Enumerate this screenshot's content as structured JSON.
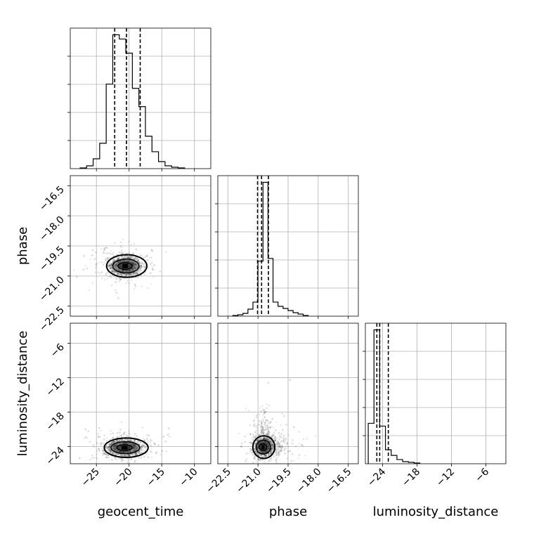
{
  "chart_data": {
    "type": "corner",
    "parameters": [
      "geocent_time",
      "phase",
      "luminosity_distance"
    ],
    "axis_labels": {
      "geocent_time": "geocent_time",
      "phase": "phase",
      "luminosity_distance": "luminosity_distance"
    },
    "ranges": {
      "geocent_time": [
        -29,
        -7.5
      ],
      "phase": [
        -23,
        -16
      ],
      "luminosity_distance": [
        -27,
        -2.5
      ]
    },
    "ticks": {
      "geocent_time": [
        -25,
        -20,
        -15,
        -10
      ],
      "phase": [
        -22.5,
        -21.0,
        -19.5,
        -18.0,
        -16.5
      ],
      "luminosity_distance": [
        -24,
        -18,
        -12,
        -6
      ]
    },
    "tick_labels": {
      "geocent_time": [
        "−25",
        "−20",
        "−15",
        "−10"
      ],
      "phase": [
        "−22.5",
        "−21.0",
        "−19.5",
        "−18.0",
        "−16.5"
      ],
      "luminosity_distance": [
        "−24",
        "−18",
        "−12",
        "−6"
      ]
    },
    "histograms": {
      "geocent_time": {
        "bin_start": -27.5,
        "bin_width": 1.0,
        "counts": [
          0.005,
          0.02,
          0.07,
          0.18,
          0.6,
          0.95,
          0.92,
          0.82,
          0.57,
          0.44,
          0.23,
          0.12,
          0.05,
          0.02,
          0.01,
          0.005
        ]
      },
      "phase": {
        "bin_start": -22.25,
        "bin_width": 0.25,
        "counts": [
          0.005,
          0.01,
          0.02,
          0.05,
          0.1,
          0.39,
          0.95,
          0.41,
          0.1,
          0.07,
          0.055,
          0.04,
          0.025,
          0.015,
          0.005
        ]
      },
      "luminosity_distance": {
        "bin_start": -26.5,
        "bin_width": 1.0,
        "counts": [
          0.29,
          0.96,
          0.27,
          0.1,
          0.06,
          0.03,
          0.015,
          0.01,
          0.005
        ]
      }
    },
    "quantiles": {
      "geocent_time": [
        -22.2,
        -20.4,
        -18.3
      ],
      "phase": [
        -21.02,
        -20.82,
        -20.48
      ],
      "luminosity_distance": [
        -25.0,
        -24.5,
        -23.0
      ]
    },
    "contour_centers": {
      "geocent_time_vs_phase": [
        -20.6,
        -20.5
      ],
      "geocent_time_vs_luminosity_distance": [
        -20.7,
        -24.2
      ],
      "phase_vs_luminosity_distance": [
        -20.75,
        -24.1
      ]
    },
    "grid": true
  }
}
